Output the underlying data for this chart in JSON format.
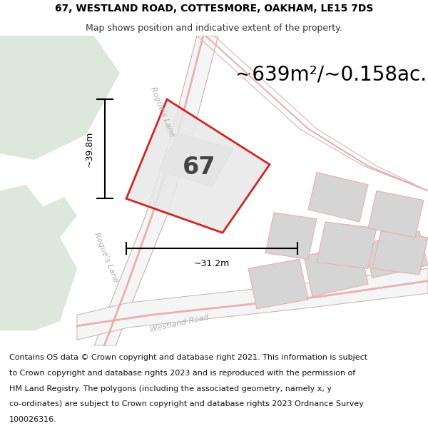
{
  "title_line1": "67, WESTLAND ROAD, COTTESMORE, OAKHAM, LE15 7DS",
  "title_line2": "Map shows position and indicative extent of the property.",
  "area_text": "~639m²/~0.158ac.",
  "number_label": "67",
  "dim_vertical": "~39.8m",
  "dim_horizontal": "~31.2m",
  "footer_lines": [
    "Contains OS data © Crown copyright and database right 2021. This information is subject",
    "to Crown copyright and database rights 2023 and is reproduced with the permission of",
    "HM Land Registry. The polygons (including the associated geometry, namely x, y",
    "co-ordinates) are subject to Crown copyright and database rights 2023 Ordnance Survey",
    "100026316."
  ],
  "bg_color": "#ffffff",
  "map_bg": "#f8f8f5",
  "green_area_color": "#dce8dc",
  "grey_block_color": "#d5d5d5",
  "plot_outline_color": "#cc0000",
  "road_stripe_color": "#e8b0b0",
  "road_center_color": "#e8b0b0",
  "road_fill_color": "#f5f5f5",
  "road_edge_color": "#c8b0b0",
  "label_color": "#b0b0b0",
  "rogues_lane_label": "Rogue's Lane",
  "westland_road_label": "Westland Road",
  "title_fontsize": 10,
  "subtitle_fontsize": 9,
  "area_fontsize": 20,
  "label_fontsize": 8,
  "number_fontsize": 24,
  "dim_fontsize": 9,
  "footer_fontsize": 8
}
